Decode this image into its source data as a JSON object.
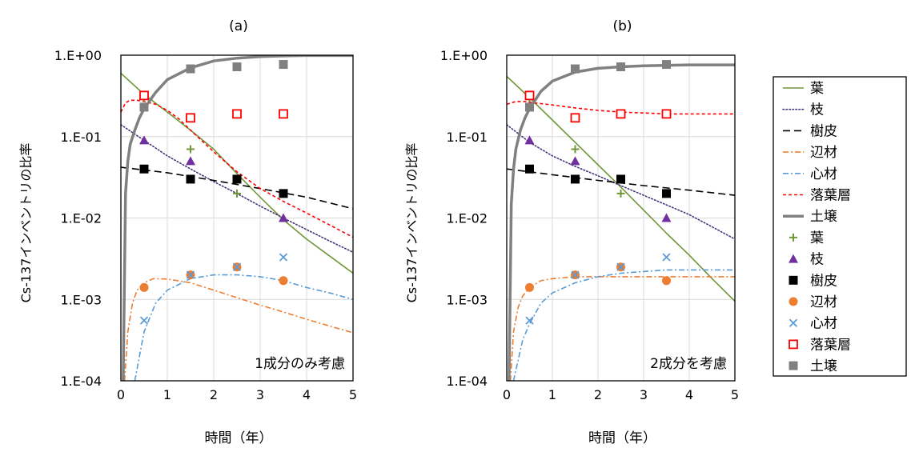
{
  "chart_data": [
    {
      "type": "scatter",
      "panel_label": "(a)",
      "annotation": "1成分のみ考慮",
      "xlabel": "時間（年）",
      "ylabel": "Cs-137インベントリの比率",
      "xlim": [
        0,
        5
      ],
      "ylim": [
        0.0001,
        1
      ],
      "yscale": "log",
      "grid": true,
      "x_ticks": [
        "0",
        "1",
        "2",
        "3",
        "4",
        "5"
      ],
      "y_ticks": [
        "1.E-04",
        "1.E-03",
        "1.E-02",
        "1.E-01",
        "1.E+00"
      ],
      "curves": [
        {
          "name": "葉",
          "x": [
            0,
            0.5,
            1,
            1.5,
            2,
            2.5,
            3,
            3.5,
            4,
            4.5,
            5
          ],
          "y": [
            0.6,
            0.33,
            0.2,
            0.12,
            0.07,
            0.035,
            0.018,
            0.0095,
            0.0055,
            0.0034,
            0.0021
          ]
        },
        {
          "name": "枝",
          "x": [
            0,
            0.5,
            1,
            1.5,
            2,
            2.5,
            3,
            3.5,
            4,
            4.5,
            5
          ],
          "y": [
            0.14,
            0.09,
            0.058,
            0.04,
            0.028,
            0.02,
            0.014,
            0.01,
            0.0072,
            0.0052,
            0.0038
          ]
        },
        {
          "name": "樹皮",
          "x": [
            0,
            1,
            2,
            3,
            4,
            5
          ],
          "y": [
            0.042,
            0.036,
            0.029,
            0.023,
            0.018,
            0.013
          ]
        },
        {
          "name": "辺材",
          "x": [
            0.08,
            0.15,
            0.25,
            0.35,
            0.5,
            0.7,
            1,
            1.5,
            2,
            2.5,
            3,
            3.5,
            4,
            4.5,
            5
          ],
          "y": [
            0.0001,
            0.0004,
            0.0009,
            0.0013,
            0.0016,
            0.0018,
            0.00178,
            0.0016,
            0.0013,
            0.00105,
            0.00085,
            0.0007,
            0.00057,
            0.00047,
            0.00039
          ]
        },
        {
          "name": "心材",
          "x": [
            0.3,
            0.4,
            0.5,
            0.75,
            1,
            1.5,
            2,
            2.5,
            3,
            3.5,
            4,
            4.5,
            5
          ],
          "y": [
            0.0001,
            0.0002,
            0.0004,
            0.0009,
            0.0013,
            0.0018,
            0.002,
            0.002,
            0.0019,
            0.0017,
            0.0014,
            0.0012,
            0.001
          ]
        },
        {
          "name": "落葉層",
          "x": [
            0,
            0.1,
            0.2,
            0.35,
            0.5,
            0.75,
            1,
            1.25,
            1.5,
            2,
            2.5,
            3,
            3.5,
            4,
            4.5,
            5
          ],
          "y": [
            0.2,
            0.26,
            0.28,
            0.28,
            0.27,
            0.25,
            0.21,
            0.165,
            0.12,
            0.065,
            0.037,
            0.023,
            0.016,
            0.0115,
            0.0082,
            0.0058
          ]
        },
        {
          "name": "土壌",
          "x": [
            0.05,
            0.1,
            0.15,
            0.2,
            0.3,
            0.4,
            0.5,
            0.75,
            1,
            1.5,
            2,
            2.5,
            3,
            3.5,
            4,
            5
          ],
          "y": [
            0.0001,
            0.02,
            0.05,
            0.08,
            0.12,
            0.17,
            0.22,
            0.35,
            0.5,
            0.7,
            0.85,
            0.92,
            0.96,
            0.98,
            0.99,
            0.99
          ]
        }
      ],
      "points": [
        {
          "name": "葉",
          "x": [
            0.5,
            1.5,
            2.5
          ],
          "y": [
            0.3,
            0.07,
            0.02
          ]
        },
        {
          "name": "枝",
          "x": [
            0.5,
            1.5,
            3.5
          ],
          "y": [
            0.09,
            0.05,
            0.01
          ]
        },
        {
          "name": "樹皮",
          "x": [
            0.5,
            1.5,
            2.5,
            3.5
          ],
          "y": [
            0.04,
            0.03,
            0.03,
            0.02
          ]
        },
        {
          "name": "辺材",
          "x": [
            0.5,
            1.5,
            2.5,
            3.5
          ],
          "y": [
            0.0014,
            0.002,
            0.0025,
            0.0017
          ]
        },
        {
          "name": "心材",
          "x": [
            0.5,
            1.5,
            2.5,
            3.5
          ],
          "y": [
            0.00055,
            0.002,
            0.0025,
            0.0033
          ]
        },
        {
          "name": "落葉層",
          "x": [
            0.5,
            1.5,
            2.5,
            3.5
          ],
          "y": [
            0.32,
            0.17,
            0.19,
            0.19
          ]
        },
        {
          "name": "土壌",
          "x": [
            0.5,
            1.5,
            2.5,
            3.5
          ],
          "y": [
            0.23,
            0.68,
            0.72,
            0.77
          ]
        }
      ]
    },
    {
      "type": "scatter",
      "panel_label": "(b)",
      "annotation": "2成分を考慮",
      "xlabel": "時間（年）",
      "ylabel": "Cs-137インベントリの比率",
      "xlim": [
        0,
        5
      ],
      "ylim": [
        0.0001,
        1
      ],
      "yscale": "log",
      "grid": true,
      "x_ticks": [
        "0",
        "1",
        "2",
        "3",
        "4",
        "5"
      ],
      "y_ticks": [
        "1.E-04",
        "1.E-03",
        "1.E-02",
        "1.E-01",
        "1.E+00"
      ],
      "curves": [
        {
          "name": "葉",
          "x": [
            0,
            0.5,
            1,
            1.5,
            2,
            2.5,
            3,
            3.5,
            4,
            4.5,
            5
          ],
          "y": [
            0.55,
            0.3,
            0.16,
            0.085,
            0.045,
            0.024,
            0.0125,
            0.0065,
            0.0035,
            0.0018,
            0.00095
          ]
        },
        {
          "name": "枝",
          "x": [
            0,
            0.5,
            1,
            1.5,
            2,
            2.5,
            3,
            3.5,
            4,
            4.5,
            5
          ],
          "y": [
            0.14,
            0.085,
            0.058,
            0.043,
            0.033,
            0.025,
            0.019,
            0.0145,
            0.011,
            0.0078,
            0.0055
          ]
        },
        {
          "name": "樹皮",
          "x": [
            0,
            1,
            2,
            3,
            4,
            5
          ],
          "y": [
            0.04,
            0.034,
            0.029,
            0.025,
            0.022,
            0.019
          ]
        },
        {
          "name": "辺材",
          "x": [
            0.08,
            0.15,
            0.25,
            0.35,
            0.5,
            0.75,
            1,
            1.5,
            2,
            3,
            4,
            5
          ],
          "y": [
            0.0001,
            0.0004,
            0.0008,
            0.0011,
            0.0014,
            0.0017,
            0.0018,
            0.0019,
            0.0019,
            0.0019,
            0.0019,
            0.0019
          ]
        },
        {
          "name": "心材",
          "x": [
            0.15,
            0.25,
            0.35,
            0.5,
            0.75,
            1,
            1.5,
            2,
            2.5,
            3,
            3.5,
            4,
            5
          ],
          "y": [
            0.0001,
            0.00018,
            0.00032,
            0.0005,
            0.0009,
            0.0012,
            0.0016,
            0.0019,
            0.0021,
            0.0022,
            0.0023,
            0.0023,
            0.0023
          ]
        },
        {
          "name": "落葉層",
          "x": [
            0,
            0.2,
            0.4,
            0.6,
            1,
            1.5,
            2,
            2.5,
            3,
            3.5,
            4,
            5
          ],
          "y": [
            0.25,
            0.27,
            0.27,
            0.26,
            0.245,
            0.225,
            0.21,
            0.2,
            0.195,
            0.19,
            0.19,
            0.19
          ]
        },
        {
          "name": "土壌",
          "x": [
            0.05,
            0.1,
            0.15,
            0.2,
            0.3,
            0.4,
            0.5,
            0.75,
            1,
            1.5,
            2,
            2.5,
            3,
            4,
            5
          ],
          "y": [
            0.0001,
            0.015,
            0.04,
            0.07,
            0.12,
            0.17,
            0.22,
            0.36,
            0.48,
            0.62,
            0.69,
            0.72,
            0.74,
            0.76,
            0.76
          ]
        }
      ],
      "points": [
        {
          "name": "葉",
          "x": [
            0.5,
            1.5,
            2.5
          ],
          "y": [
            0.3,
            0.07,
            0.02
          ]
        },
        {
          "name": "枝",
          "x": [
            0.5,
            1.5,
            3.5
          ],
          "y": [
            0.09,
            0.05,
            0.01
          ]
        },
        {
          "name": "樹皮",
          "x": [
            0.5,
            1.5,
            2.5,
            3.5
          ],
          "y": [
            0.04,
            0.03,
            0.03,
            0.02
          ]
        },
        {
          "name": "辺材",
          "x": [
            0.5,
            1.5,
            2.5,
            3.5
          ],
          "y": [
            0.0014,
            0.002,
            0.0025,
            0.0017
          ]
        },
        {
          "name": "心材",
          "x": [
            0.5,
            1.5,
            2.5,
            3.5
          ],
          "y": [
            0.00055,
            0.002,
            0.0025,
            0.0033
          ]
        },
        {
          "name": "落葉層",
          "x": [
            0.5,
            1.5,
            2.5,
            3.5
          ],
          "y": [
            0.32,
            0.17,
            0.19,
            0.19
          ]
        },
        {
          "name": "土壌",
          "x": [
            0.5,
            1.5,
            2.5,
            3.5
          ],
          "y": [
            0.23,
            0.68,
            0.72,
            0.77
          ]
        }
      ]
    }
  ],
  "legend": {
    "line_entries": [
      "葉",
      "枝",
      "樹皮",
      "辺材",
      "心材",
      "落葉層",
      "土壌"
    ],
    "marker_entries": [
      "葉",
      "枝",
      "樹皮",
      "辺材",
      "心材",
      "落葉層",
      "土壌"
    ]
  },
  "series_styles": {
    "葉": {
      "color": "#70963a",
      "marker": "plus-icon",
      "line": "solid"
    },
    "枝": {
      "color": "#44357a",
      "marker": "triangle-icon",
      "line": "dotted"
    },
    "樹皮": {
      "color": "#000000",
      "marker": "square-icon",
      "line": "long-dash"
    },
    "辺材": {
      "color": "#ed7d31",
      "marker": "circle-icon",
      "line": "dash-dot"
    },
    "心材": {
      "color": "#5b9bd5",
      "marker": "x-icon",
      "line": "dash-dot"
    },
    "落葉層": {
      "color": "#ff0000",
      "marker": "open-square-icon",
      "line": "short-dash"
    },
    "土壌": {
      "color": "#808080",
      "marker": "gray-square-icon",
      "line": "thick-solid"
    }
  },
  "marker_colors": {
    "枝": "#7030a0"
  }
}
